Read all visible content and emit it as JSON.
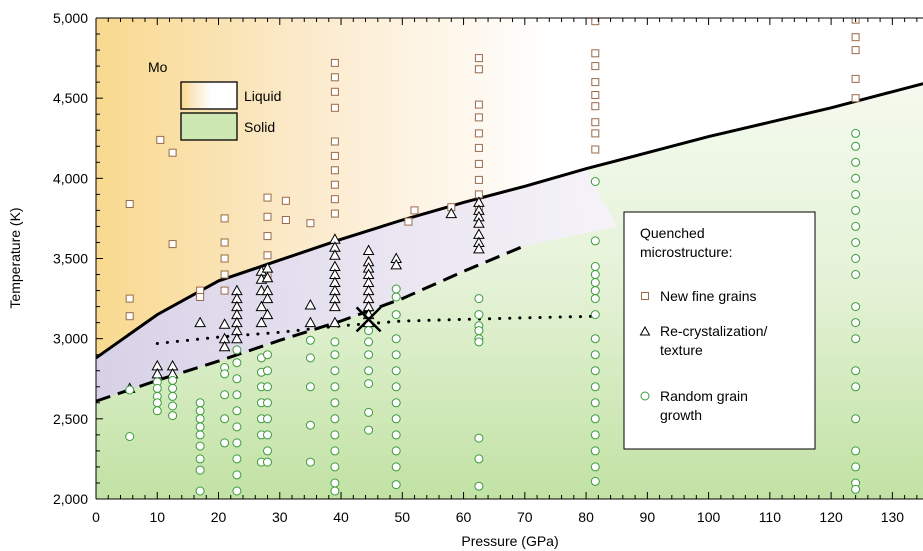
{
  "chart_data": {
    "type": "scatter",
    "xlabel": "Pressure (GPa)",
    "ylabel": "Temperature (K)",
    "xlim": [
      0,
      135
    ],
    "ylim": [
      2000,
      5000
    ],
    "x_ticks": [
      0,
      10,
      20,
      30,
      40,
      50,
      60,
      70,
      80,
      90,
      100,
      110,
      120,
      130
    ],
    "y_ticks": [
      2000,
      2500,
      3000,
      3500,
      4000,
      4500,
      5000
    ],
    "x_tick_labels": [
      "0",
      "10",
      "20",
      "30",
      "40",
      "50",
      "60",
      "70",
      "80",
      "90",
      "100",
      "110",
      "120",
      "130"
    ],
    "y_tick_labels": [
      "2,000",
      "2,500",
      "3,000",
      "3,500",
      "4,000",
      "4,500",
      "5,000"
    ],
    "grid": false,
    "region_legend": {
      "title": "Mo",
      "entries": [
        {
          "label": "Liquid",
          "color": "#f9d98e"
        },
        {
          "label": "Solid",
          "color": "#c2e2a4"
        }
      ]
    },
    "marker_legend": {
      "title_lines": [
        "Quenched",
        "microstructure:"
      ],
      "entries": [
        {
          "label_lines": [
            "New fine grains"
          ],
          "marker": "square",
          "color": "#9b6a4a"
        },
        {
          "label_lines": [
            "Re-crystalization/",
            "texture"
          ],
          "marker": "triangle",
          "color": "#000000"
        },
        {
          "label_lines": [
            "Random grain",
            "growth"
          ],
          "marker": "circle",
          "color": "#3d9a3d"
        }
      ]
    },
    "curves": [
      {
        "style": "solid",
        "points": [
          [
            0,
            2880
          ],
          [
            10,
            3150
          ],
          [
            20,
            3360
          ],
          [
            30,
            3490
          ],
          [
            40,
            3620
          ],
          [
            50,
            3740
          ],
          [
            60,
            3850
          ],
          [
            70,
            3950
          ],
          [
            80,
            4060
          ],
          [
            90,
            4160
          ],
          [
            100,
            4260
          ],
          [
            110,
            4350
          ],
          [
            120,
            4440
          ],
          [
            135,
            4590
          ]
        ]
      },
      {
        "style": "dashed",
        "points": [
          [
            0,
            2610
          ],
          [
            10,
            2740
          ],
          [
            20,
            2860
          ],
          [
            30,
            2990
          ],
          [
            40,
            3110
          ],
          [
            50,
            3250
          ],
          [
            60,
            3420
          ],
          [
            70,
            3580
          ]
        ]
      },
      {
        "style": "dotted",
        "points": [
          [
            10,
            2970
          ],
          [
            20,
            3010
          ],
          [
            30,
            3040
          ],
          [
            40,
            3080
          ],
          [
            50,
            3110
          ],
          [
            60,
            3120
          ],
          [
            70,
            3130
          ],
          [
            82,
            3140
          ]
        ]
      }
    ],
    "cross_point": [
      44.5,
      3120
    ],
    "series": [
      {
        "marker": "square",
        "points": [
          [
            5.5,
            3840
          ],
          [
            5.5,
            3250
          ],
          [
            5.5,
            3140
          ],
          [
            10.5,
            4240
          ],
          [
            12.5,
            4160
          ],
          [
            12.5,
            3590
          ],
          [
            17,
            3300
          ],
          [
            17,
            3260
          ],
          [
            21,
            3750
          ],
          [
            21,
            3600
          ],
          [
            21,
            3500
          ],
          [
            21,
            3400
          ],
          [
            21,
            3300
          ],
          [
            28,
            3880
          ],
          [
            28,
            3760
          ],
          [
            28,
            3640
          ],
          [
            28,
            3520
          ],
          [
            28,
            3400
          ],
          [
            31,
            3860
          ],
          [
            31,
            3740
          ],
          [
            35,
            3720
          ],
          [
            39,
            4720
          ],
          [
            39,
            4630
          ],
          [
            39,
            4540
          ],
          [
            39,
            4440
          ],
          [
            39,
            4230
          ],
          [
            39,
            4140
          ],
          [
            39,
            4050
          ],
          [
            39,
            3960
          ],
          [
            39,
            3870
          ],
          [
            39,
            3780
          ],
          [
            51,
            3730
          ],
          [
            52,
            3800
          ],
          [
            58,
            3820
          ],
          [
            62.5,
            4750
          ],
          [
            62.5,
            4680
          ],
          [
            62.5,
            4460
          ],
          [
            62.5,
            4380
          ],
          [
            62.5,
            4280
          ],
          [
            62.5,
            4190
          ],
          [
            62.5,
            4090
          ],
          [
            62.5,
            3990
          ],
          [
            62.5,
            3900
          ],
          [
            62.5,
            3810
          ],
          [
            81.5,
            4980
          ],
          [
            81.5,
            4780
          ],
          [
            81.5,
            4700
          ],
          [
            81.5,
            4600
          ],
          [
            81.5,
            4520
          ],
          [
            81.5,
            4450
          ],
          [
            81.5,
            4350
          ],
          [
            81.5,
            4280
          ],
          [
            81.5,
            4180
          ],
          [
            124,
            4990
          ],
          [
            124,
            4880
          ],
          [
            124,
            4800
          ],
          [
            124,
            4620
          ],
          [
            124,
            4500
          ]
        ]
      },
      {
        "marker": "triangle",
        "points": [
          [
            5.5,
            2690
          ],
          [
            10,
            2830
          ],
          [
            10,
            2780
          ],
          [
            12.5,
            2830
          ],
          [
            12.5,
            2780
          ],
          [
            17,
            3100
          ],
          [
            21,
            3090
          ],
          [
            21,
            3000
          ],
          [
            21,
            2950
          ],
          [
            23,
            3300
          ],
          [
            23,
            3250
          ],
          [
            23,
            3200
          ],
          [
            23,
            3150
          ],
          [
            23,
            3100
          ],
          [
            23,
            3050
          ],
          [
            23,
            3000
          ],
          [
            27,
            3420
          ],
          [
            27,
            3370
          ],
          [
            27,
            3300
          ],
          [
            27,
            3200
          ],
          [
            27,
            3100
          ],
          [
            28,
            3440
          ],
          [
            28,
            3380
          ],
          [
            28,
            3300
          ],
          [
            28,
            3250
          ],
          [
            28,
            3150
          ],
          [
            35,
            3210
          ],
          [
            35,
            3100
          ],
          [
            39,
            3620
          ],
          [
            39,
            3570
          ],
          [
            39,
            3520
          ],
          [
            39,
            3450
          ],
          [
            39,
            3400
          ],
          [
            39,
            3350
          ],
          [
            39,
            3300
          ],
          [
            39,
            3250
          ],
          [
            39,
            3200
          ],
          [
            39,
            3100
          ],
          [
            44.5,
            3550
          ],
          [
            44.5,
            3480
          ],
          [
            44.5,
            3440
          ],
          [
            44.5,
            3400
          ],
          [
            44.5,
            3350
          ],
          [
            44.5,
            3300
          ],
          [
            44.5,
            3250
          ],
          [
            44.5,
            3200
          ],
          [
            44.5,
            3150
          ],
          [
            44.5,
            3100
          ],
          [
            49,
            3500
          ],
          [
            49,
            3460
          ],
          [
            58,
            3780
          ],
          [
            62.5,
            3850
          ],
          [
            62.5,
            3800
          ],
          [
            62.5,
            3760
          ],
          [
            62.5,
            3720
          ],
          [
            62.5,
            3650
          ],
          [
            62.5,
            3600
          ],
          [
            62.5,
            3560
          ]
        ]
      },
      {
        "marker": "circle",
        "points": [
          [
            5.5,
            2680
          ],
          [
            5.5,
            2390
          ],
          [
            10,
            2730
          ],
          [
            10,
            2690
          ],
          [
            10,
            2640
          ],
          [
            10,
            2600
          ],
          [
            10,
            2550
          ],
          [
            12.5,
            2740
          ],
          [
            12.5,
            2690
          ],
          [
            12.5,
            2640
          ],
          [
            12.5,
            2580
          ],
          [
            12.5,
            2520
          ],
          [
            17,
            2600
          ],
          [
            17,
            2550
          ],
          [
            17,
            2500
          ],
          [
            17,
            2450
          ],
          [
            17,
            2400
          ],
          [
            17,
            2330
          ],
          [
            17,
            2250
          ],
          [
            17,
            2180
          ],
          [
            17,
            2050
          ],
          [
            21,
            2820
          ],
          [
            21,
            2780
          ],
          [
            21,
            2650
          ],
          [
            21,
            2500
          ],
          [
            21,
            2350
          ],
          [
            23,
            2930
          ],
          [
            23,
            2850
          ],
          [
            23,
            2750
          ],
          [
            23,
            2650
          ],
          [
            23,
            2550
          ],
          [
            23,
            2450
          ],
          [
            23,
            2350
          ],
          [
            23,
            2250
          ],
          [
            23,
            2150
          ],
          [
            23,
            2050
          ],
          [
            27,
            2880
          ],
          [
            27,
            2790
          ],
          [
            27,
            2700
          ],
          [
            27,
            2600
          ],
          [
            27,
            2500
          ],
          [
            27,
            2400
          ],
          [
            27,
            2230
          ],
          [
            28,
            2900
          ],
          [
            28,
            2800
          ],
          [
            28,
            2700
          ],
          [
            28,
            2600
          ],
          [
            28,
            2500
          ],
          [
            28,
            2400
          ],
          [
            28,
            2300
          ],
          [
            28,
            2230
          ],
          [
            35,
            2990
          ],
          [
            35,
            2880
          ],
          [
            35,
            2700
          ],
          [
            35,
            2460
          ],
          [
            35,
            2230
          ],
          [
            39,
            2980
          ],
          [
            39,
            2900
          ],
          [
            39,
            2800
          ],
          [
            39,
            2700
          ],
          [
            39,
            2600
          ],
          [
            39,
            2500
          ],
          [
            39,
            2400
          ],
          [
            39,
            2300
          ],
          [
            39,
            2200
          ],
          [
            39,
            2100
          ],
          [
            39,
            2050
          ],
          [
            44.5,
            3050
          ],
          [
            44.5,
            2980
          ],
          [
            44.5,
            2900
          ],
          [
            44.5,
            2800
          ],
          [
            44.5,
            2720
          ],
          [
            44.5,
            2540
          ],
          [
            44.5,
            2430
          ],
          [
            49,
            3310
          ],
          [
            49,
            3260
          ],
          [
            49,
            3150
          ],
          [
            49,
            3000
          ],
          [
            49,
            2900
          ],
          [
            49,
            2800
          ],
          [
            49,
            2700
          ],
          [
            49,
            2600
          ],
          [
            49,
            2500
          ],
          [
            49,
            2400
          ],
          [
            49,
            2300
          ],
          [
            49,
            2200
          ],
          [
            49,
            2090
          ],
          [
            62.5,
            3250
          ],
          [
            62.5,
            3150
          ],
          [
            62.5,
            3080
          ],
          [
            62.5,
            3050
          ],
          [
            62.5,
            3000
          ],
          [
            62.5,
            2980
          ],
          [
            62.5,
            2380
          ],
          [
            62.5,
            2250
          ],
          [
            62.5,
            2080
          ],
          [
            81.5,
            3980
          ],
          [
            81.5,
            3610
          ],
          [
            81.5,
            3450
          ],
          [
            81.5,
            3400
          ],
          [
            81.5,
            3350
          ],
          [
            81.5,
            3300
          ],
          [
            81.5,
            3250
          ],
          [
            81.5,
            3150
          ],
          [
            81.5,
            3000
          ],
          [
            81.5,
            2900
          ],
          [
            81.5,
            2800
          ],
          [
            81.5,
            2700
          ],
          [
            81.5,
            2600
          ],
          [
            81.5,
            2500
          ],
          [
            81.5,
            2400
          ],
          [
            81.5,
            2300
          ],
          [
            81.5,
            2200
          ],
          [
            81.5,
            2110
          ],
          [
            124,
            4280
          ],
          [
            124,
            4200
          ],
          [
            124,
            4100
          ],
          [
            124,
            4000
          ],
          [
            124,
            3900
          ],
          [
            124,
            3800
          ],
          [
            124,
            3700
          ],
          [
            124,
            3600
          ],
          [
            124,
            3500
          ],
          [
            124,
            3400
          ],
          [
            124,
            3200
          ],
          [
            124,
            3100
          ],
          [
            124,
            3000
          ],
          [
            124,
            2800
          ],
          [
            124,
            2700
          ],
          [
            124,
            2500
          ],
          [
            124,
            2300
          ],
          [
            124,
            2200
          ],
          [
            124,
            2100
          ],
          [
            124,
            2060
          ]
        ]
      }
    ]
  }
}
